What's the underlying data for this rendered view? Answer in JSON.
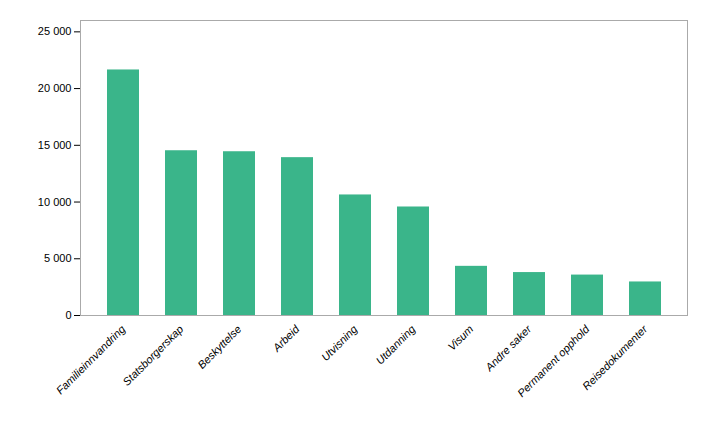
{
  "chart_data": {
    "type": "bar",
    "categories": [
      "Familieinnvandring",
      "Statsborgerskap",
      "Beskyttelse",
      "Arbeid",
      "Utvisning",
      "Utdanning",
      "Visum",
      "Andre saker",
      "Permanent opphold",
      "Reisedokumenter"
    ],
    "values": [
      21640,
      14521,
      14433,
      13912,
      10624,
      9563,
      4333,
      3784,
      3563,
      2956
    ],
    "color": "#3ab58a",
    "ylim": [
      0,
      26000
    ],
    "yticks": [
      0,
      {
        "value": 5000,
        "label": "5 000"
      },
      {
        "value": 10000,
        "label": "10 000"
      },
      {
        "value": 15000,
        "label": "15 000"
      },
      {
        "value": 20000,
        "label": "20 000"
      },
      {
        "value": 25000,
        "label": "25 000"
      }
    ],
    "grid": false
  }
}
